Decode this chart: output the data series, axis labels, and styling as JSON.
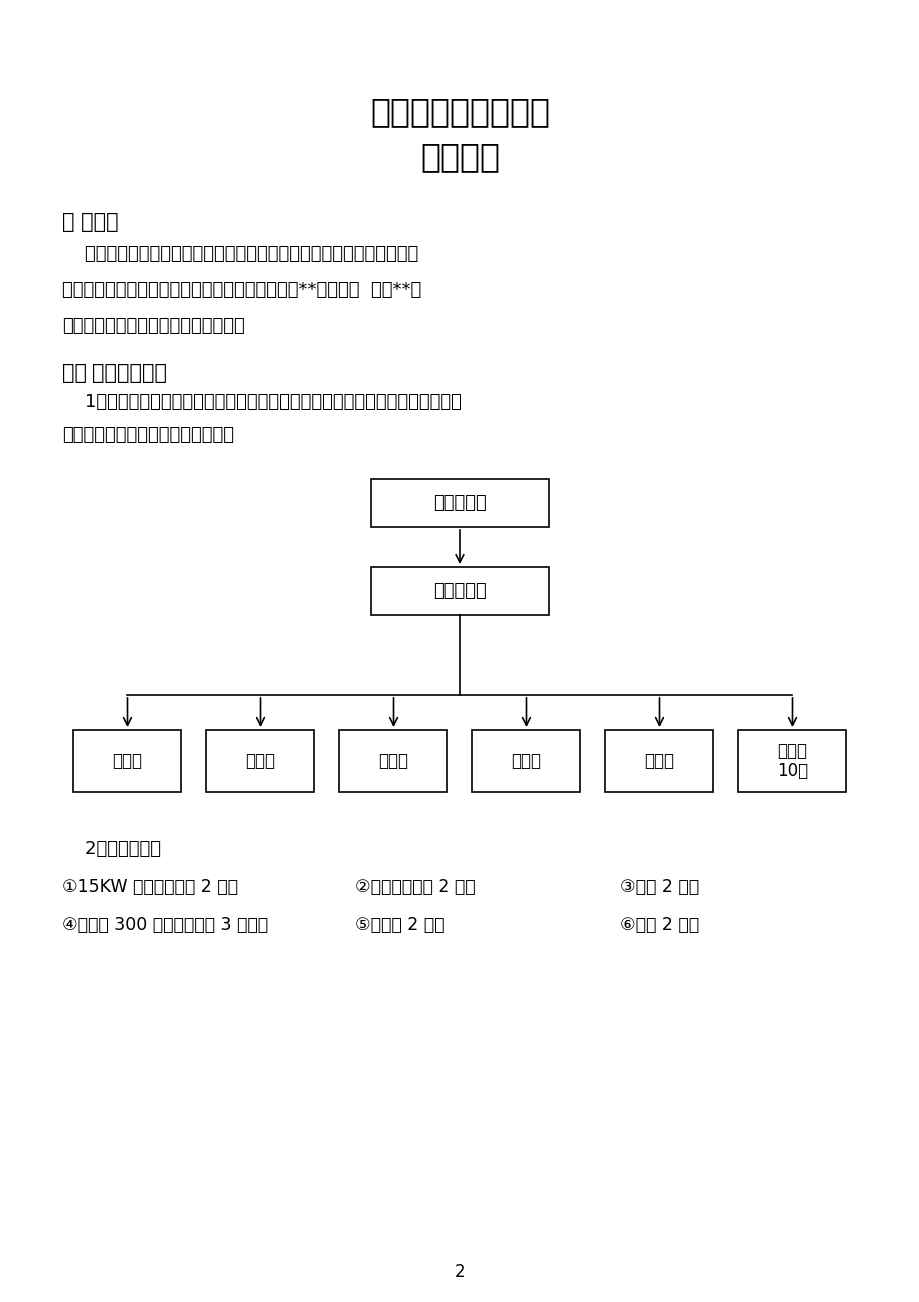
{
  "bg_color": "#ffffff",
  "title_line1": "电梯机房增加防护栏",
  "title_line2": "施工方案",
  "section1_header": "一 、概述",
  "section1_body": [
    "    生活区高层电梯机房频繁遭到盗窃及损坏，对电梯机房产生严重危害，",
    "导致居民出行乘坐电梯存在严重安全隐患。根据房**计划安排  加装**电",
    "梯机房的门、窗及护栏的防盗措施等。"
  ],
  "section2_header_prefix": "二、",
  "section2_header_bold": "施工组织机构",
  "section2_body": [
    "    1、建立强有力的项目部，公司行政部协助项目经理选派思想好、能力强、善合",
    "作、服务好的管理人员组成项目部。"
  ],
  "org_top": "项目总负责",
  "org_mid": "现场负责人",
  "org_bottom": [
    "安装班",
    "防腐班",
    "电工班",
    "土建班",
    "安全员",
    "辅助工\n10人"
  ],
  "section3_body1": "    2、工器具准备",
  "tools_row1_col1": "①15KW 硅整流电焊机 2 台；",
  "tools_row1_col2": "②氧、乙炔气割 2 套；",
  "tools_row1_col3": "③板手 2 套；",
  "tools_row2_col1": "④电缆线 300 米（含配电箱 3 套）；",
  "tools_row2_col2": "⑤工具车 2 辆；",
  "tools_row2_col3": "⑥熔枪 2 把；",
  "page_number": "2"
}
